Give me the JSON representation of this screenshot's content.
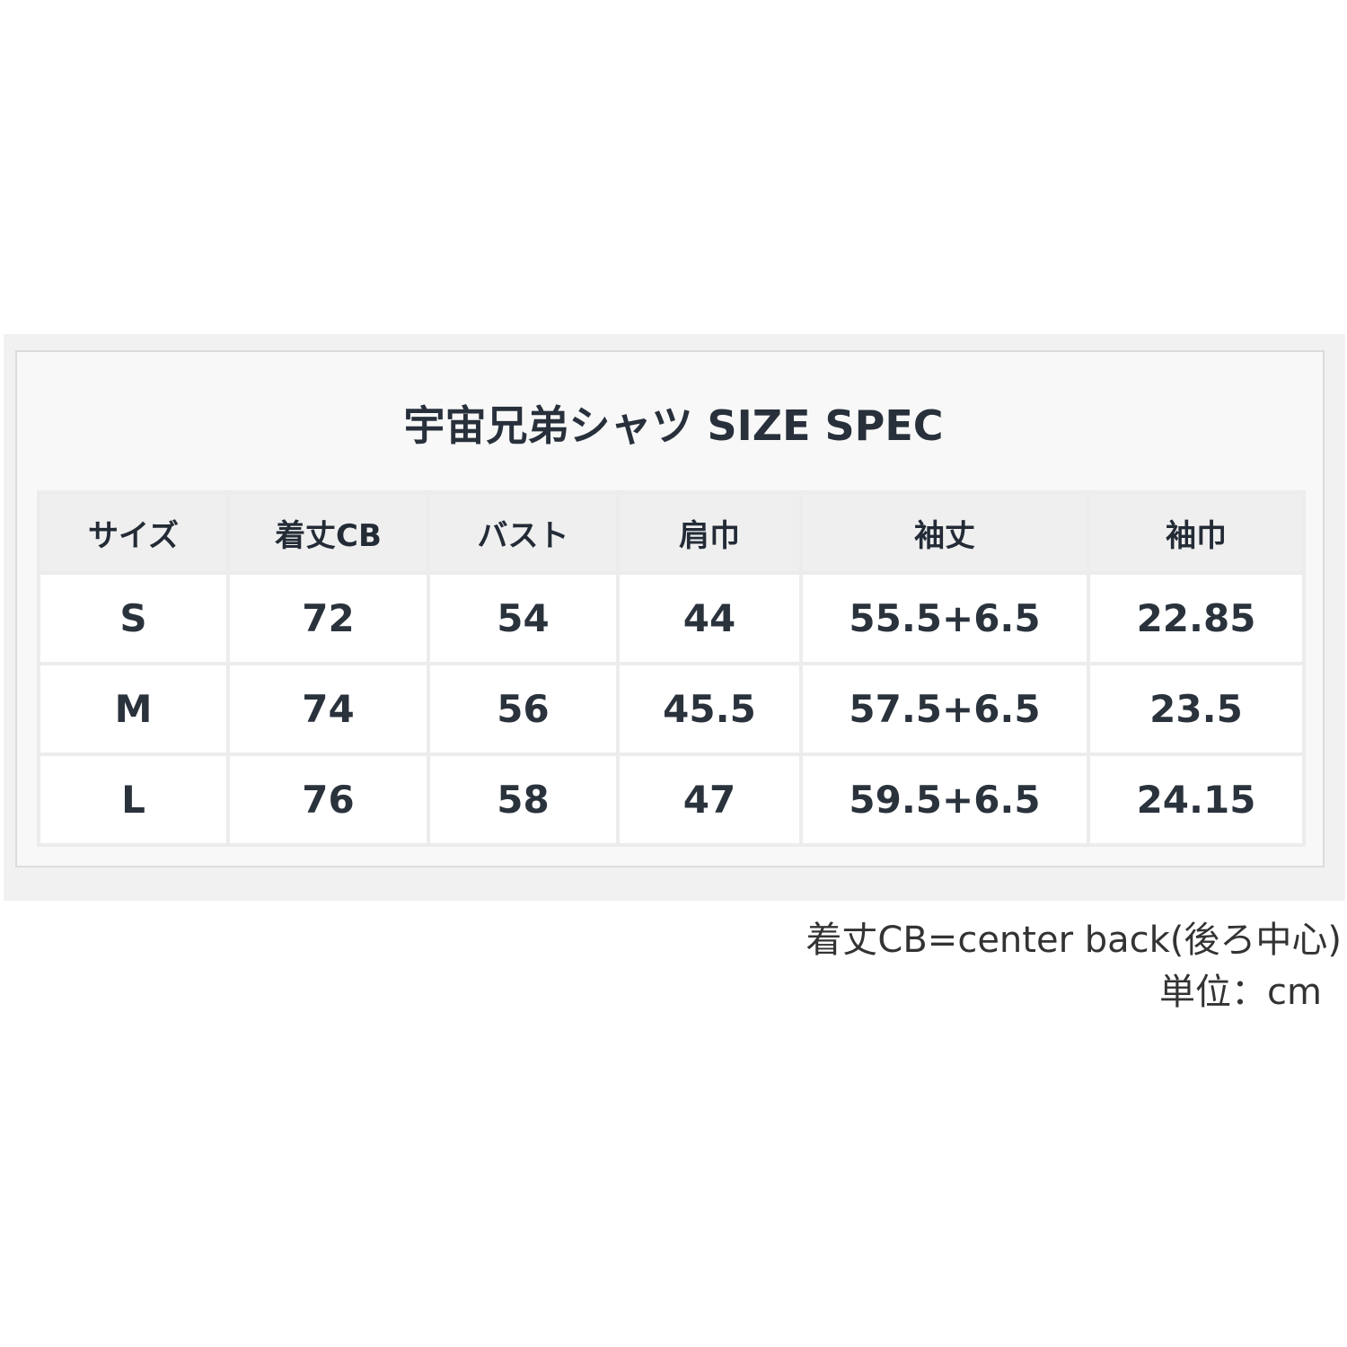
{
  "title": "宇宙兄弟シャツ SIZE SPEC",
  "table": {
    "headers": [
      "サイズ",
      "着丈CB",
      "バスト",
      "肩巾",
      "袖丈",
      "袖巾"
    ],
    "rows": [
      [
        "S",
        "72",
        "54",
        "44",
        "55.5+6.5",
        "22.85"
      ],
      [
        "M",
        "74",
        "56",
        "45.5",
        "57.5+6.5",
        "23.5"
      ],
      [
        "L",
        "76",
        "58",
        "47",
        "59.5+6.5",
        "24.15"
      ]
    ]
  },
  "notes": {
    "cb": "着丈CB=center back(後ろ中心)",
    "unit": "単位：cm"
  }
}
